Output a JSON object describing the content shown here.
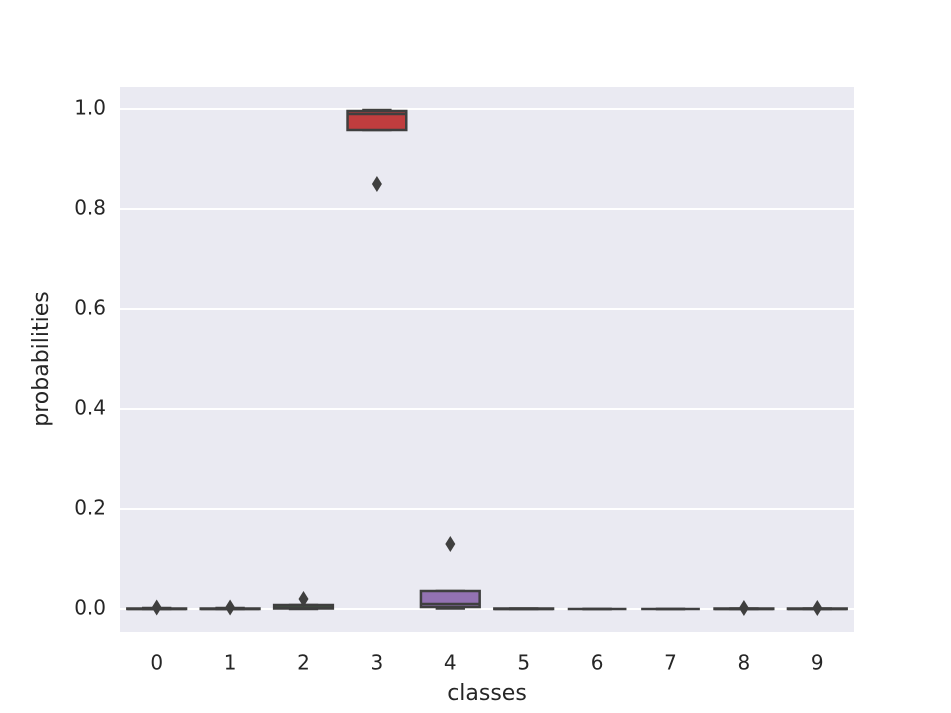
{
  "chart_data": {
    "type": "box",
    "xlabel": "classes",
    "ylabel": "probabilities",
    "categories": [
      "0",
      "1",
      "2",
      "3",
      "4",
      "5",
      "6",
      "7",
      "8",
      "9"
    ],
    "colors": [
      "#3274a1",
      "#e1812c",
      "#3a923a",
      "#c03d3e",
      "#9372b2",
      "#845b53",
      "#d684bd",
      "#7f7f7f",
      "#a9aa35",
      "#2eb6c9"
    ],
    "boxes": [
      {
        "whislo": 0,
        "q1": 0,
        "median": 0,
        "q3": 0.001,
        "whishi": 0.002,
        "outliers": [
          0.003
        ]
      },
      {
        "whislo": 0,
        "q1": 0,
        "median": 0,
        "q3": 0.001,
        "whishi": 0.002,
        "outliers": [
          0.003
        ]
      },
      {
        "whislo": 0,
        "q1": 0.001,
        "median": 0.003,
        "q3": 0.008,
        "whishi": 0.008,
        "outliers": [
          0.02
        ]
      },
      {
        "whislo": 0.958,
        "q1": 0.958,
        "median": 0.99,
        "q3": 0.996,
        "whishi": 0.998,
        "outliers": [
          0.85
        ]
      },
      {
        "whislo": 0.001,
        "q1": 0.004,
        "median": 0.01,
        "q3": 0.036,
        "whishi": 0.036,
        "outliers": [
          0.13
        ]
      },
      {
        "whislo": 0,
        "q1": 0,
        "median": 0,
        "q3": 0.001,
        "whishi": 0.001,
        "outliers": []
      },
      {
        "whislo": 0,
        "q1": 0,
        "median": 0,
        "q3": 0,
        "whishi": 0,
        "outliers": []
      },
      {
        "whislo": 0,
        "q1": 0,
        "median": 0,
        "q3": 0,
        "whishi": 0,
        "outliers": []
      },
      {
        "whislo": 0,
        "q1": 0,
        "median": 0,
        "q3": 0.001,
        "whishi": 0.001,
        "outliers": [
          0.002
        ]
      },
      {
        "whislo": 0,
        "q1": 0,
        "median": 0,
        "q3": 0.001,
        "whishi": 0.001,
        "outliers": [
          0.002
        ]
      }
    ],
    "ylim": [
      -0.046,
      1.044
    ],
    "yticks": [
      {
        "value": 0,
        "label": "0.0"
      },
      0.2,
      0.4,
      0.6,
      0.8,
      {
        "value": 1,
        "label": "1.0"
      }
    ],
    "grid": true
  }
}
